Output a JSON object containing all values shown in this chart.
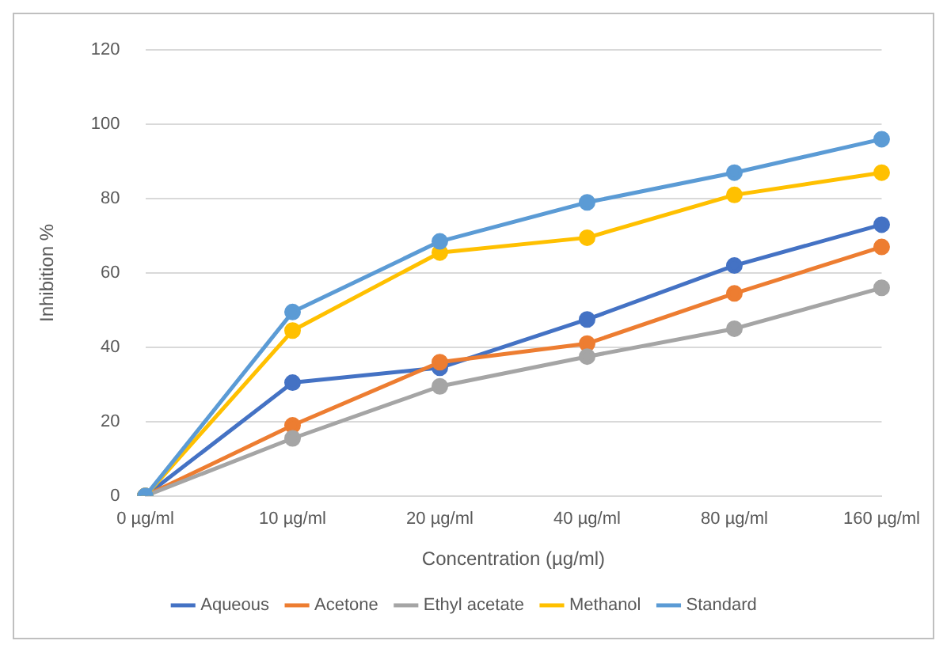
{
  "chart_data": {
    "type": "line",
    "xlabel": "Concentration (µg/ml)",
    "ylabel": "Inhibition %",
    "categories": [
      "0 µg/ml",
      "10 µg/ml",
      "20 µg/ml",
      "40 µg/ml",
      "80 µg/ml",
      "160 µg/ml"
    ],
    "series": [
      {
        "name": "Aqueous",
        "color": "#4472c4",
        "values": [
          0,
          30.5,
          34.5,
          47.5,
          62,
          73
        ]
      },
      {
        "name": "Acetone",
        "color": "#ed7d31",
        "values": [
          0,
          19,
          36,
          41,
          54.5,
          67
        ]
      },
      {
        "name": "Ethyl acetate",
        "color": "#a5a5a5",
        "values": [
          0,
          15.5,
          29.5,
          37.5,
          45,
          56
        ]
      },
      {
        "name": "Methanol",
        "color": "#ffc000",
        "values": [
          0,
          44.5,
          65.5,
          69.5,
          81,
          87
        ]
      },
      {
        "name": "Standard",
        "color": "#5b9bd5",
        "values": [
          0,
          49.5,
          68.5,
          79,
          87,
          96
        ]
      }
    ],
    "ylim": [
      0,
      120
    ],
    "yticks": [
      0,
      20,
      40,
      60,
      80,
      100,
      120
    ],
    "grid": "y",
    "legend": "bottom",
    "marker": "circle",
    "line_style": "solid"
  }
}
